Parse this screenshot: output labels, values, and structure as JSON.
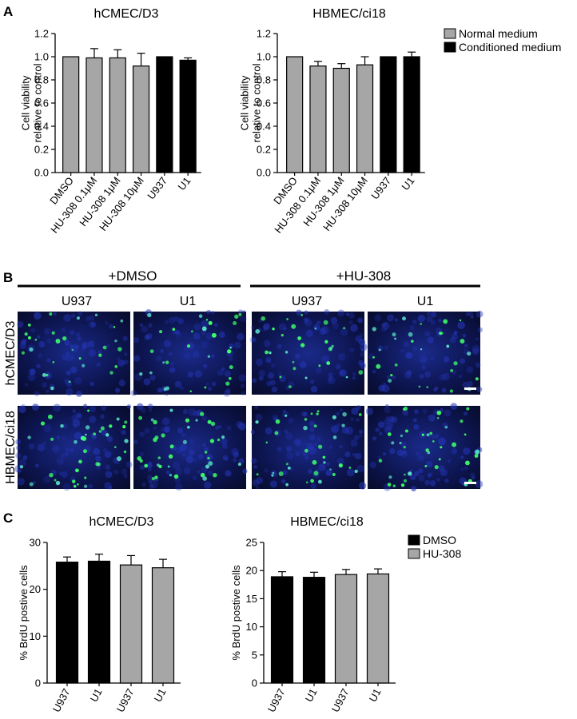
{
  "panels": {
    "a": "A",
    "b": "B",
    "c": "C"
  },
  "legend_a": [
    {
      "label": "Normal medium",
      "color": "#a6a6a6"
    },
    {
      "label": "Conditioned medium",
      "color": "#000000"
    }
  ],
  "legend_c": [
    {
      "label": "DMSO",
      "color": "#000000"
    },
    {
      "label": "HU-308",
      "color": "#a6a6a6"
    }
  ],
  "images": {
    "group_left": "+DMSO",
    "group_right": "+HU-308",
    "col_labels": [
      "U937",
      "U1",
      "U937",
      "U1"
    ],
    "row_labels": [
      "hCMEC/D3",
      "HBMEC/ci18"
    ]
  },
  "chart_data": [
    {
      "type": "bar",
      "title": "hCMEC/D3",
      "ylabel": [
        "Cell viability",
        "relative to control"
      ],
      "categories": [
        "DMSO",
        "HU-308 0.1μM",
        "HU-308 1μM",
        "HU-308 10μM",
        "U937",
        "U1"
      ],
      "values": [
        1.0,
        0.99,
        0.99,
        0.92,
        1.0,
        0.97
      ],
      "errors": [
        0.0,
        0.08,
        0.07,
        0.11,
        0.0,
        0.02
      ],
      "colors": [
        "#a6a6a6",
        "#a6a6a6",
        "#a6a6a6",
        "#a6a6a6",
        "#000000",
        "#000000"
      ],
      "ylim": [
        0,
        1.2
      ],
      "yticks": [
        "0.0",
        "0.2",
        "0.4",
        "0.6",
        "0.8",
        "1.0",
        "1.2"
      ],
      "grid": false
    },
    {
      "type": "bar",
      "title": "HBMEC/ci18",
      "ylabel": [
        "Cell viability",
        "relative to control"
      ],
      "categories": [
        "DMSO",
        "HU-308 0.1μM",
        "HU-308 1μM",
        "HU-308 10μM",
        "U937",
        "U1"
      ],
      "values": [
        1.0,
        0.92,
        0.9,
        0.93,
        1.0,
        1.0
      ],
      "errors": [
        0.0,
        0.04,
        0.04,
        0.07,
        0.0,
        0.04
      ],
      "colors": [
        "#a6a6a6",
        "#a6a6a6",
        "#a6a6a6",
        "#a6a6a6",
        "#000000",
        "#000000"
      ],
      "ylim": [
        0,
        1.2
      ],
      "yticks": [
        "0.0",
        "0.2",
        "0.4",
        "0.6",
        "0.8",
        "1.0",
        "1.2"
      ],
      "grid": false
    },
    {
      "type": "bar",
      "title": "hCMEC/D3",
      "ylabel": [
        "% BrdU postive cells"
      ],
      "categories": [
        "U937",
        "U1",
        "U937",
        "U1"
      ],
      "values": [
        25.8,
        26.0,
        25.2,
        24.6
      ],
      "errors": [
        1.1,
        1.5,
        2.0,
        1.8
      ],
      "colors": [
        "#000000",
        "#000000",
        "#a6a6a6",
        "#a6a6a6"
      ],
      "ylim": [
        0,
        30
      ],
      "yticks": [
        "0",
        "10",
        "20",
        "30"
      ],
      "grid": false
    },
    {
      "type": "bar",
      "title": "HBMEC/ci18",
      "ylabel": [
        "% BrdU postive cells"
      ],
      "categories": [
        "U937",
        "U1",
        "U937",
        "U1"
      ],
      "values": [
        18.9,
        18.8,
        19.3,
        19.4
      ],
      "errors": [
        0.9,
        0.9,
        0.9,
        0.9
      ],
      "colors": [
        "#000000",
        "#000000",
        "#a6a6a6",
        "#a6a6a6"
      ],
      "ylim": [
        0,
        25
      ],
      "yticks": [
        "0",
        "5",
        "10",
        "15",
        "20",
        "25"
      ],
      "grid": false
    }
  ]
}
